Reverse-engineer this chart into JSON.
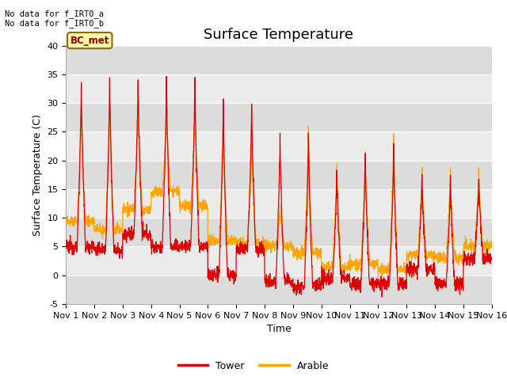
{
  "title": "Surface Temperature",
  "ylabel": "Surface Temperature (C)",
  "xlabel": "Time",
  "text_top_left_line1": "No data for f_IRT0_a",
  "text_top_left_line2": "No data for f_IRT0_b",
  "legend_label": "BC_met",
  "ylim": [
    -5,
    40
  ],
  "color_tower": "#DD0000",
  "color_arable": "#FFA500",
  "bg_color": "#E8E8E8",
  "bg_color_light": "#F0F0F0",
  "legend_tower": "Tower",
  "legend_arable": "Arable",
  "grid_color": "white",
  "title_fontsize": 13,
  "axis_fontsize": 9,
  "tick_fontsize": 8,
  "xtick_labels": [
    "Nov 1",
    "Nov 2",
    "Nov 3",
    "Nov 4",
    "Nov 5",
    "Nov 6",
    "Nov 7",
    "Nov 8",
    "Nov 9",
    "Nov 10",
    "Nov 11",
    "Nov 12",
    "Nov 13",
    "Nov 14",
    "Nov 15",
    "Nov 16"
  ],
  "ytick_vals": [
    -5,
    0,
    5,
    10,
    15,
    20,
    25,
    30,
    35,
    40
  ],
  "tower_peaks": [
    34,
    35,
    35,
    35,
    35,
    31,
    30,
    25,
    25,
    18,
    22,
    22,
    17,
    17,
    17
  ],
  "tower_mins": [
    5,
    4.5,
    7,
    5,
    5,
    0,
    4.5,
    -1,
    -2,
    -0.5,
    -1.5,
    -1.5,
    1,
    -1.5,
    3
  ],
  "arable_peaks": [
    29,
    29,
    29,
    29,
    29,
    26,
    24,
    12,
    25.5,
    20.5,
    21,
    25,
    18.5,
    19,
    19
  ],
  "arable_mins": [
    9.5,
    8,
    11.5,
    14.5,
    12,
    6,
    5.5,
    5,
    4,
    1.5,
    2,
    1,
    3.5,
    3,
    5
  ]
}
